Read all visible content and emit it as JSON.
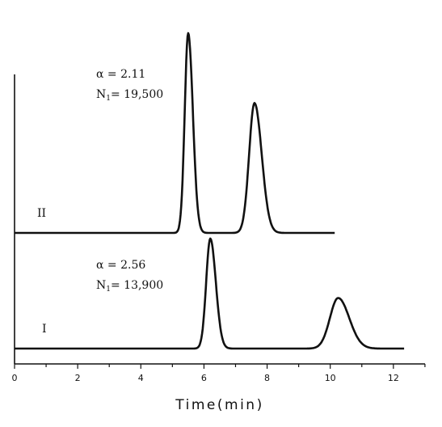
{
  "chart_data": {
    "type": "line",
    "xlabel": "Time(min)",
    "xlim": [
      0,
      13
    ],
    "xticks": [
      0,
      2,
      4,
      6,
      8,
      10,
      12
    ],
    "ylabel": "",
    "grid": false,
    "series": [
      {
        "name": "II",
        "annotation": {
          "alpha": "α = 2.11",
          "n_main": "N",
          "n_sub": "1",
          "n_rest": "= 19,500"
        },
        "x_range": [
          0,
          10.15
        ],
        "peaks": [
          {
            "x": 5.5,
            "height": 1.0,
            "width": 0.11
          },
          {
            "x": 7.6,
            "height": 0.65,
            "width": 0.17
          }
        ]
      },
      {
        "name": "I",
        "annotation": {
          "alpha": "α = 2.56",
          "n_main": "N",
          "n_sub": "1",
          "n_rest": "= 13,900"
        },
        "x_range": [
          0,
          12.35
        ],
        "peaks": [
          {
            "x": 6.2,
            "height": 1.0,
            "width": 0.13
          },
          {
            "x": 10.25,
            "height": 0.46,
            "width": 0.26
          }
        ]
      }
    ]
  }
}
